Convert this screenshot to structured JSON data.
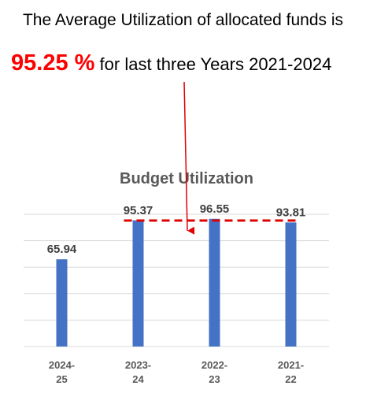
{
  "header": {
    "line1": "The Average Utilization of allocated funds is",
    "percent": "95.25 %",
    "line2_rest": " for last three Years 2021-2024"
  },
  "colors": {
    "bar": "#4472c4",
    "average_line": "#e00000",
    "arrow": "#e00000",
    "grid": "#d9d9d9",
    "title": "#595959",
    "label": "#404040"
  },
  "chart_data": {
    "type": "bar",
    "title": "Budget Utilization",
    "categories": [
      "2024-\n25",
      "2023-\n24",
      "2022-\n23",
      "2021-\n22"
    ],
    "values": [
      65.94,
      95.37,
      96.55,
      93.81
    ],
    "data_labels": [
      "65.94",
      "95.37",
      "96.55",
      "93.81"
    ],
    "average": 95.25,
    "ylim": [
      0,
      100
    ],
    "grid": true,
    "legend": "none"
  }
}
